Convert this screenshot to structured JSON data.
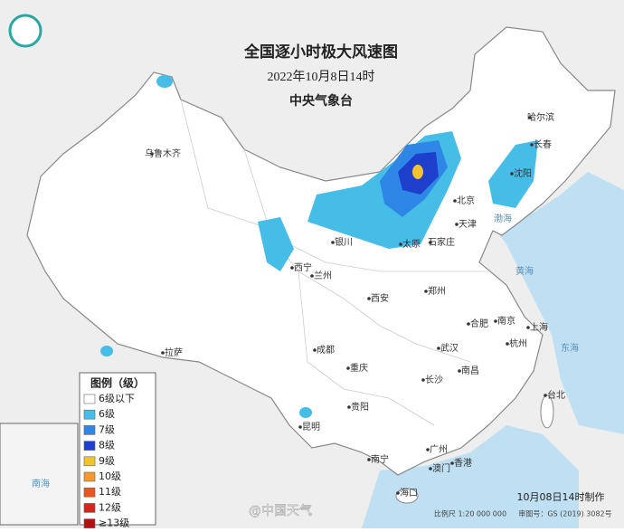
{
  "header": {
    "title": "全国逐小时极大风速图",
    "datetime": "2022年10月8日14时",
    "issuer": "中央气象台"
  },
  "legend": {
    "title": "图例（级）",
    "items": [
      {
        "label": "6级以下",
        "color": "#ffffff"
      },
      {
        "label": "6级",
        "color": "#46bde6"
      },
      {
        "label": "7级",
        "color": "#2e86e6"
      },
      {
        "label": "8级",
        "color": "#1d3fcc"
      },
      {
        "label": "9级",
        "color": "#f2c230"
      },
      {
        "label": "10级",
        "color": "#f29a2e"
      },
      {
        "label": "11级",
        "color": "#e8561f"
      },
      {
        "label": "12级",
        "color": "#d6261c"
      },
      {
        "label": "≥13级",
        "color": "#b0100e"
      }
    ]
  },
  "cities": [
    "哈尔滨",
    "长春",
    "沈阳",
    "乌鲁木齐",
    "北京",
    "天津",
    "石家庄",
    "太原",
    "西宁",
    "兰州",
    "银川",
    "郑州",
    "西安",
    "合肥",
    "南京",
    "上海",
    "杭州",
    "武汉",
    "南昌",
    "长沙",
    "成都",
    "重庆",
    "贵阳",
    "昆明",
    "拉萨",
    "台北",
    "南宁",
    "广州",
    "海口",
    "澳门",
    "香港"
  ],
  "seas": [
    "渤海",
    "黄海",
    "东海",
    "南海"
  ],
  "footer": {
    "made": "10月08日14时制作",
    "scale": "比例尺 1:20 000 000",
    "approval": "审图号：GS (2019) 3082号",
    "watermark": "@中国天气"
  }
}
